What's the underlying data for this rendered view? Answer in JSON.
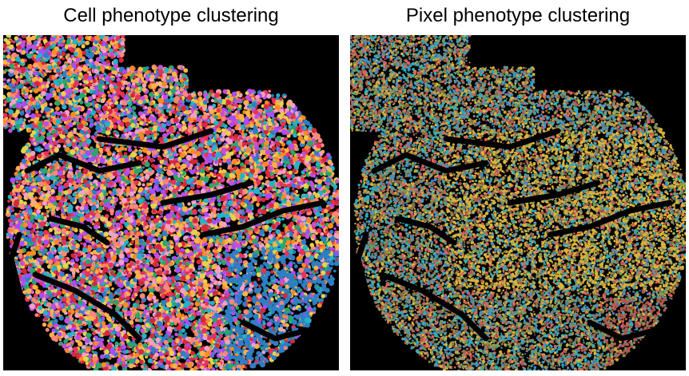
{
  "panels": [
    {
      "title": "Cell phenotype clustering",
      "background": "#000000",
      "palette": [
        "#e8325a",
        "#f9877a",
        "#fd8a24",
        "#a64dff",
        "#2d7fc4",
        "#22b3c8",
        "#e6d24b",
        "#2aa66a",
        "#f2a0c8",
        "#c44fd9",
        "#ffb347",
        "#d62839"
      ]
    },
    {
      "title": "Pixel phenotype clustering",
      "background": "#000000",
      "palette": [
        "#7f9a4a",
        "#2ab0c0",
        "#b5554a",
        "#d9b43a",
        "#3a8fd0",
        "#6a8a8a",
        "#c9a040",
        "#4aa0a0",
        "#8c6a3a",
        "#e06060"
      ]
    }
  ]
}
